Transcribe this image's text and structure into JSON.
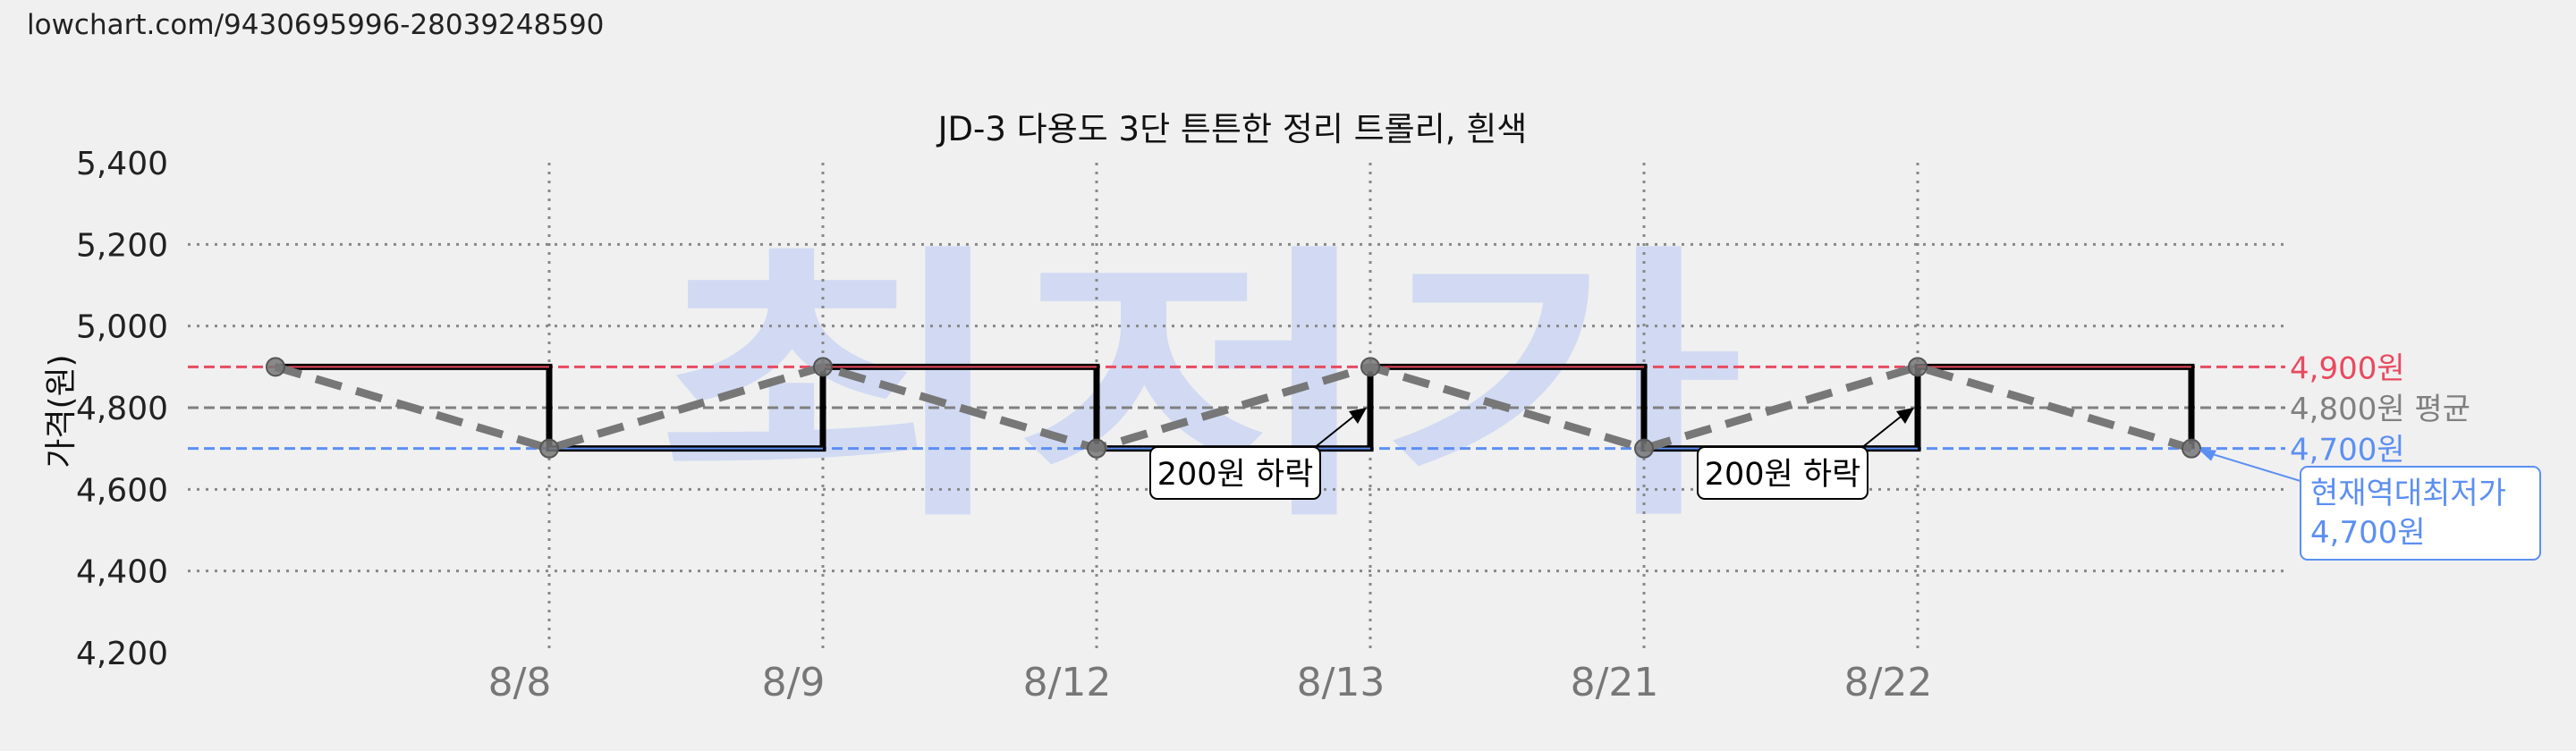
{
  "page": {
    "url": "lowchart.com/9430695996-28039248590",
    "watermark": "최저가",
    "title": "JD-3 다용도 3단 튼튼한 정리 트롤리, 흰색",
    "ylabel": "가격(원)"
  },
  "chart_data": {
    "type": "line",
    "title": "JD-3 다용도 3단 튼튼한 정리 트롤리, 흰색",
    "ylabel": "가격(원)",
    "ylim": [
      4200,
      5400
    ],
    "yticks": [
      4200,
      4400,
      4600,
      4800,
      5000,
      5200,
      5400
    ],
    "ytick_labels": [
      "4,200",
      "4,400",
      "4,600",
      "4,800",
      "5,000",
      "5,200",
      "5,400"
    ],
    "x_labels": [
      "8/8",
      "8/9",
      "8/12",
      "8/13",
      "8/21",
      "8/22"
    ],
    "series": [
      {
        "name": "",
        "style": "step",
        "values": [
          4900,
          4700,
          4900,
          4700,
          4900,
          4700,
          4900,
          4700
        ]
      },
      {
        "name": "",
        "style": "dashed-trend",
        "values": [
          4900,
          4700,
          4900,
          4700,
          4900,
          4700,
          4900,
          4700
        ]
      }
    ],
    "reference_lines": [
      {
        "value": 4900,
        "label": "4,900원",
        "color": "#e84a5f"
      },
      {
        "value": 4800,
        "label": "4,800원 평균",
        "color": "#808080"
      },
      {
        "value": 4700,
        "label": "4,700원",
        "color": "#5c8ff2"
      }
    ],
    "annotations": [
      {
        "text": "200원 하락",
        "x_index": 4,
        "value": 4800
      },
      {
        "text": "200원 하락",
        "x_index": 6,
        "value": 4800
      }
    ],
    "current_low": {
      "label": "현재역대최저가",
      "value_label": "4,700원",
      "color": "#5c8ff2"
    },
    "grid": true,
    "colors": {
      "step": "#000000",
      "trend": "#777777",
      "grid": "#888888"
    }
  }
}
